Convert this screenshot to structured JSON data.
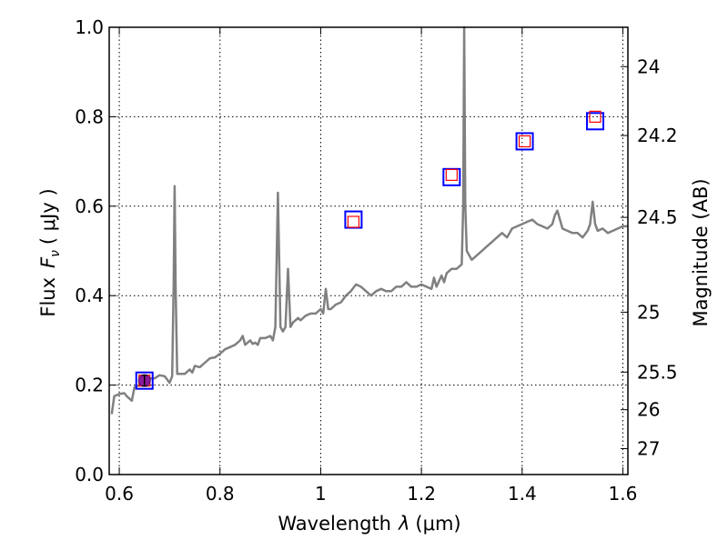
{
  "chart_data": {
    "type": "line",
    "xlabel_text": "Wavelength",
    "xlabel_sym": "λ",
    "xlabel_unit": "(μm)",
    "ylabel_text": "Flux",
    "ylabel_sym": "F",
    "ylabel_sub": "ν",
    "ylabel_unit": "( μJy )",
    "y2label": "Magnitude (AB)",
    "xlim": [
      0.58,
      1.61
    ],
    "ylim": [
      0.0,
      1.0
    ],
    "grid": true,
    "x_ticks": [
      0.6,
      0.8,
      1.0,
      1.2,
      1.4,
      1.6
    ],
    "x_tick_labels": [
      "0.6",
      "0.8",
      "1",
      "1.2",
      "1.4",
      "1.6"
    ],
    "y_ticks": [
      0.0,
      0.2,
      0.4,
      0.6,
      0.8,
      1.0
    ],
    "y_tick_labels": [
      "0.0",
      "0.2",
      "0.4",
      "0.6",
      "0.8",
      "1.0"
    ],
    "mag_ticks": [
      {
        "label": "24",
        "flux": 0.912
      },
      {
        "label": "24.2",
        "flux": 0.758
      },
      {
        "label": "24.5",
        "flux": 0.575
      },
      {
        "label": "25",
        "flux": 0.363
      },
      {
        "label": "25.5",
        "flux": 0.229
      },
      {
        "label": "26",
        "flux": 0.145
      },
      {
        "label": "27",
        "flux": 0.058
      }
    ],
    "series": [
      {
        "name": "model spectrum",
        "color": "#808080",
        "x": [
          0.585,
          0.59,
          0.6,
          0.61,
          0.615,
          0.625,
          0.63,
          0.64,
          0.645,
          0.65,
          0.66,
          0.67,
          0.68,
          0.69,
          0.7,
          0.705,
          0.708,
          0.71,
          0.712,
          0.715,
          0.72,
          0.73,
          0.74,
          0.745,
          0.75,
          0.76,
          0.77,
          0.78,
          0.79,
          0.8,
          0.81,
          0.82,
          0.83,
          0.84,
          0.845,
          0.85,
          0.86,
          0.865,
          0.87,
          0.875,
          0.88,
          0.89,
          0.9,
          0.905,
          0.91,
          0.915,
          0.92,
          0.925,
          0.93,
          0.935,
          0.94,
          0.945,
          0.95,
          0.955,
          0.96,
          0.97,
          0.98,
          0.99,
          1.0,
          1.005,
          1.01,
          1.015,
          1.02,
          1.03,
          1.04,
          1.05,
          1.06,
          1.07,
          1.08,
          1.09,
          1.1,
          1.11,
          1.12,
          1.13,
          1.14,
          1.15,
          1.16,
          1.17,
          1.18,
          1.19,
          1.2,
          1.21,
          1.22,
          1.225,
          1.23,
          1.24,
          1.245,
          1.25,
          1.26,
          1.27,
          1.28,
          1.283,
          1.285,
          1.287,
          1.29,
          1.3,
          1.31,
          1.32,
          1.33,
          1.34,
          1.35,
          1.36,
          1.37,
          1.38,
          1.39,
          1.4,
          1.41,
          1.42,
          1.43,
          1.44,
          1.45,
          1.46,
          1.465,
          1.47,
          1.48,
          1.49,
          1.5,
          1.51,
          1.52,
          1.53,
          1.535,
          1.54,
          1.545,
          1.55,
          1.56,
          1.57,
          1.58,
          1.59,
          1.6,
          1.61
        ],
        "values": [
          0.135,
          0.175,
          0.18,
          0.182,
          0.175,
          0.165,
          0.195,
          0.2,
          0.205,
          0.21,
          0.215,
          0.215,
          0.222,
          0.22,
          0.205,
          0.22,
          0.42,
          0.645,
          0.42,
          0.225,
          0.225,
          0.225,
          0.235,
          0.228,
          0.243,
          0.24,
          0.25,
          0.26,
          0.262,
          0.27,
          0.28,
          0.285,
          0.29,
          0.3,
          0.31,
          0.29,
          0.3,
          0.292,
          0.295,
          0.29,
          0.305,
          0.305,
          0.31,
          0.3,
          0.33,
          0.63,
          0.33,
          0.32,
          0.33,
          0.46,
          0.33,
          0.34,
          0.345,
          0.35,
          0.345,
          0.355,
          0.36,
          0.36,
          0.37,
          0.36,
          0.415,
          0.37,
          0.37,
          0.38,
          0.385,
          0.4,
          0.41,
          0.425,
          0.42,
          0.41,
          0.4,
          0.41,
          0.415,
          0.41,
          0.41,
          0.42,
          0.42,
          0.43,
          0.42,
          0.42,
          0.425,
          0.42,
          0.415,
          0.44,
          0.42,
          0.445,
          0.43,
          0.45,
          0.46,
          0.46,
          0.47,
          0.6,
          1.0,
          0.6,
          0.5,
          0.48,
          0.49,
          0.5,
          0.51,
          0.52,
          0.53,
          0.54,
          0.53,
          0.55,
          0.555,
          0.56,
          0.565,
          0.57,
          0.56,
          0.555,
          0.55,
          0.56,
          0.58,
          0.59,
          0.55,
          0.545,
          0.54,
          0.54,
          0.53,
          0.545,
          0.56,
          0.61,
          0.56,
          0.545,
          0.55,
          0.54,
          0.545,
          0.55,
          0.555,
          0.555
        ]
      },
      {
        "name": "photometry (blue squares)",
        "color": "#0000ff",
        "x": [
          0.65,
          1.065,
          1.26,
          1.405,
          1.545
        ],
        "values": [
          0.21,
          0.57,
          0.665,
          0.745,
          0.79
        ]
      },
      {
        "name": "model photometry (red squares)",
        "color": "#ff0000",
        "x": [
          0.65,
          1.065,
          1.26,
          1.405,
          1.545
        ],
        "values": [
          0.21,
          0.565,
          0.67,
          0.745,
          0.8
        ]
      },
      {
        "name": "measured point",
        "color": "#8b1a9a",
        "x": [
          0.65
        ],
        "values": [
          0.21
        ],
        "errors": [
          0.012
        ]
      }
    ]
  }
}
